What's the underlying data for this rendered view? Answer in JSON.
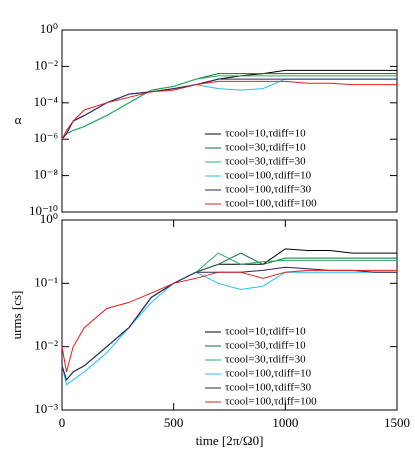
{
  "chart_data": [
    {
      "type": "line",
      "ylabel": "α",
      "log_y": true,
      "legend": "lower right",
      "x": [
        0,
        20,
        50,
        100,
        200,
        300,
        400,
        500,
        600,
        700,
        800,
        900,
        1000,
        1100,
        1200,
        1300,
        1400,
        1500
      ],
      "xlim": [
        0,
        1500
      ],
      "ylim": [
        1e-10,
        1
      ],
      "yticks": [
        {
          "value": 1,
          "label": "10⁰"
        },
        {
          "value": 0.01,
          "label": "10⁻²"
        },
        {
          "value": 0.0001,
          "label": "10⁻⁴"
        },
        {
          "value": 1e-06,
          "label": "10⁻⁶"
        },
        {
          "value": 1e-08,
          "label": "10⁻⁸"
        },
        {
          "value": 1e-10,
          "label": "10⁻¹⁰"
        }
      ],
      "series": [
        {
          "name": "τcool=10,τdiff=10",
          "color": "#000000",
          "values": [
            1e-06,
            2e-06,
            1e-05,
            2e-05,
            0.0001,
            0.0003,
            0.0004,
            0.0006,
            0.001,
            0.002,
            0.003,
            0.004,
            0.006,
            0.006,
            0.006,
            0.006,
            0.006,
            0.006
          ]
        },
        {
          "name": "τcool=30,τdiff=10",
          "color": "#1a6a3a",
          "values": [
            1e-06,
            2e-06,
            3e-06,
            5e-06,
            2e-05,
            0.0001,
            0.0005,
            0.0008,
            0.002,
            0.004,
            0.004,
            0.004,
            0.004,
            0.004,
            0.004,
            0.004,
            0.004,
            0.004
          ]
        },
        {
          "name": "τcool=30,τdiff=30",
          "color": "#20b060",
          "values": [
            1e-06,
            2e-06,
            3e-06,
            5e-06,
            2e-05,
            0.0001,
            0.0005,
            0.0008,
            0.002,
            0.003,
            0.003,
            0.003,
            0.003,
            0.003,
            0.003,
            0.003,
            0.003,
            0.003
          ]
        },
        {
          "name": "τcool=100,τdiff=10",
          "color": "#20c0f0",
          "values": [
            1e-06,
            2e-06,
            1e-05,
            2e-05,
            0.0001,
            0.0003,
            0.0004,
            0.0006,
            0.001,
            0.0006,
            0.0005,
            0.0006,
            0.002,
            0.002,
            0.002,
            0.002,
            0.002,
            0.002
          ]
        },
        {
          "name": "τcool=100,τdiff=30",
          "color": "#302060",
          "values": [
            1e-06,
            2e-06,
            1e-05,
            2e-05,
            0.0001,
            0.0003,
            0.0004,
            0.0006,
            0.001,
            0.002,
            0.002,
            0.002,
            0.002,
            0.002,
            0.002,
            0.002,
            0.002,
            0.002
          ]
        },
        {
          "name": "τcool=100,τdiff=100",
          "color": "#e02020",
          "values": [
            1e-06,
            3e-06,
            1e-05,
            4e-05,
            0.0001,
            0.0002,
            0.0004,
            0.0005,
            0.001,
            0.0015,
            0.0015,
            0.0015,
            0.0015,
            0.0012,
            0.0012,
            0.001,
            0.001,
            0.001
          ]
        }
      ]
    },
    {
      "type": "line",
      "ylabel": "urms [cs]",
      "xlabel": "time [2π/Ω0]",
      "log_y": true,
      "legend": "lower right",
      "x": [
        0,
        20,
        50,
        100,
        200,
        300,
        400,
        500,
        600,
        700,
        800,
        900,
        1000,
        1100,
        1200,
        1300,
        1400,
        1500
      ],
      "xlim": [
        0,
        1500
      ],
      "xticks": [
        0,
        500,
        1000,
        1500
      ],
      "ylim": [
        0.001,
        1
      ],
      "yticks": [
        {
          "value": 1,
          "label": "10⁰"
        },
        {
          "value": 0.1,
          "label": "10⁻¹"
        },
        {
          "value": 0.01,
          "label": "10⁻²"
        },
        {
          "value": 0.001,
          "label": "10⁻³"
        }
      ],
      "series": [
        {
          "name": "τcool=10,τdiff=10",
          "color": "#000000",
          "values": [
            0.005,
            0.003,
            0.004,
            0.005,
            0.01,
            0.02,
            0.06,
            0.1,
            0.15,
            0.2,
            0.2,
            0.2,
            0.35,
            0.33,
            0.33,
            0.3,
            0.3,
            0.3
          ]
        },
        {
          "name": "τcool=30,τdiff=10",
          "color": "#1a6a3a",
          "values": [
            0.005,
            0.003,
            0.004,
            0.005,
            0.01,
            0.02,
            0.06,
            0.1,
            0.15,
            0.2,
            0.3,
            0.2,
            0.25,
            0.25,
            0.25,
            0.25,
            0.25,
            0.25
          ]
        },
        {
          "name": "τcool=30,τdiff=30",
          "color": "#20b060",
          "values": [
            0.005,
            0.003,
            0.004,
            0.005,
            0.01,
            0.02,
            0.06,
            0.1,
            0.15,
            0.3,
            0.2,
            0.22,
            0.23,
            0.23,
            0.23,
            0.23,
            0.23,
            0.23
          ]
        },
        {
          "name": "τcool=100,τdiff=10",
          "color": "#20c0f0",
          "values": [
            0.005,
            0.0025,
            0.003,
            0.004,
            0.008,
            0.02,
            0.05,
            0.1,
            0.15,
            0.1,
            0.08,
            0.09,
            0.15,
            0.15,
            0.15,
            0.15,
            0.15,
            0.15
          ]
        },
        {
          "name": "τcool=100,τdiff=30",
          "color": "#302060",
          "values": [
            0.005,
            0.003,
            0.004,
            0.005,
            0.01,
            0.02,
            0.06,
            0.1,
            0.15,
            0.15,
            0.15,
            0.16,
            0.18,
            0.17,
            0.16,
            0.16,
            0.15,
            0.15
          ]
        },
        {
          "name": "τcool=100,τdiff=100",
          "color": "#e02020",
          "values": [
            0.01,
            0.004,
            0.01,
            0.02,
            0.04,
            0.05,
            0.07,
            0.1,
            0.12,
            0.15,
            0.15,
            0.12,
            0.15,
            0.16,
            0.16,
            0.16,
            0.16,
            0.16
          ]
        }
      ]
    }
  ]
}
